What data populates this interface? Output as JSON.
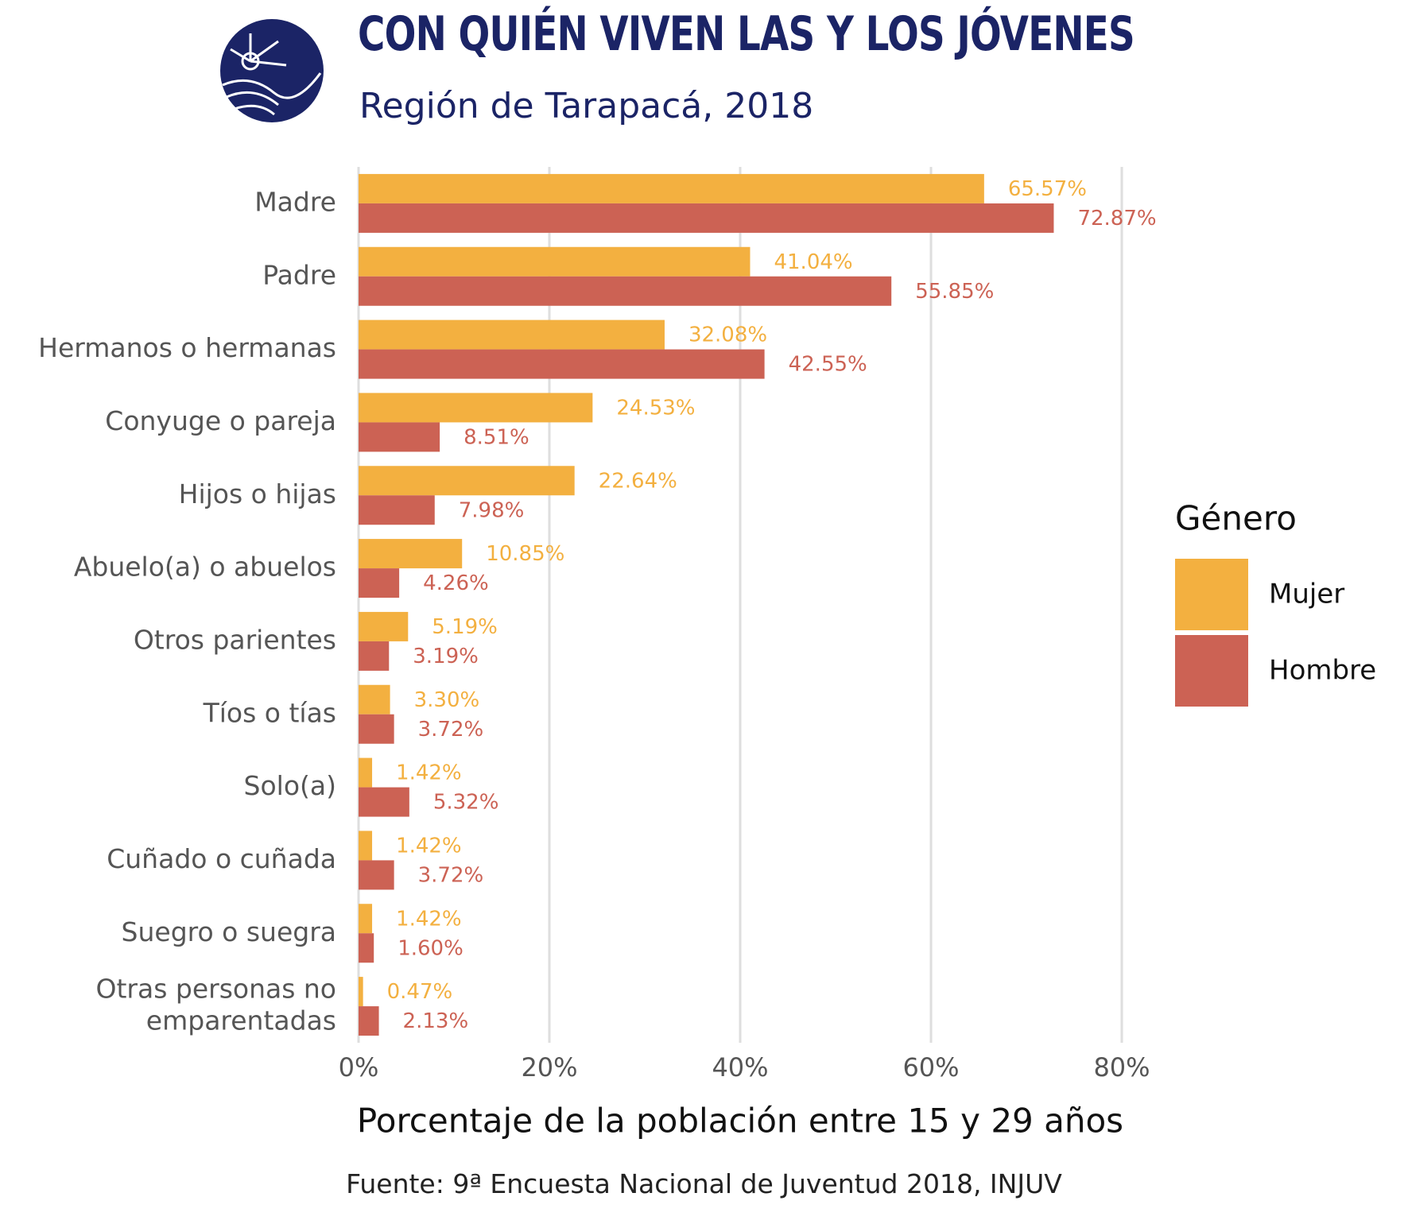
{
  "header": {
    "title": "CON QUIÉN VIVEN LAS Y LOS JÓVENES",
    "subtitle": "Región de Tarapacá, 2018"
  },
  "footer": {
    "source": "Fuente: 9ª Encuesta Nacional de Juventud 2018, INJUV"
  },
  "colors": {
    "mujer": "#f3b040",
    "hombre": "#cc6254",
    "logo": "#1b2466",
    "grid": "#dedede"
  },
  "chart_data": {
    "type": "bar",
    "orientation": "horizontal",
    "title": "CON QUIÉN VIVEN LAS Y LOS JÓVENES",
    "subtitle": "Región de Tarapacá, 2018",
    "xlabel": "Porcentaje de la población entre 15 y 29 años",
    "ylabel": "",
    "xlim": [
      0,
      80
    ],
    "x_ticks": [
      "0%",
      "20%",
      "40%",
      "60%",
      "80%"
    ],
    "grid": "vertical",
    "legend_title": "Género",
    "legend_position": "right",
    "categories": [
      [
        "Madre"
      ],
      [
        "Padre"
      ],
      [
        "Hermanos o hermanas"
      ],
      [
        "Conyuge o pareja"
      ],
      [
        "Hijos o hijas"
      ],
      [
        "Abuelo(a) o abuelos"
      ],
      [
        "Otros parientes"
      ],
      [
        "Tíos o tías"
      ],
      [
        "Solo(a)"
      ],
      [
        "Cuñado o cuñada"
      ],
      [
        "Suegro o suegra"
      ],
      [
        "Otras personas no",
        "emparentadas"
      ]
    ],
    "series": [
      {
        "name": "Mujer",
        "color": "#f3b040",
        "values": [
          65.57,
          41.04,
          32.08,
          24.53,
          22.64,
          10.85,
          5.19,
          3.3,
          1.42,
          1.42,
          1.42,
          0.47
        ],
        "labels": [
          "65.57%",
          "41.04%",
          "32.08%",
          "24.53%",
          "22.64%",
          "10.85%",
          "5.19%",
          "3.30%",
          "1.42%",
          "1.42%",
          "1.42%",
          "0.47%"
        ]
      },
      {
        "name": "Hombre",
        "color": "#cc6254",
        "values": [
          72.87,
          55.85,
          42.55,
          8.51,
          7.98,
          4.26,
          3.19,
          3.72,
          5.32,
          3.72,
          1.6,
          2.13
        ],
        "labels": [
          "72.87%",
          "55.85%",
          "42.55%",
          "8.51%",
          "7.98%",
          "4.26%",
          "3.19%",
          "3.72%",
          "5.32%",
          "3.72%",
          "1.60%",
          "2.13%"
        ]
      }
    ]
  }
}
